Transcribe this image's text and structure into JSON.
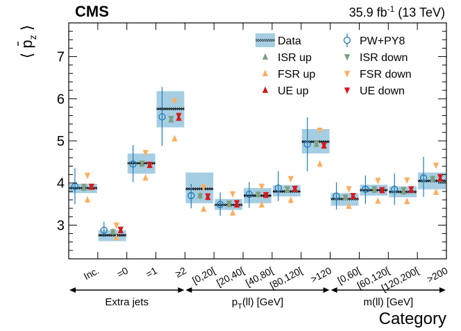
{
  "header": {
    "experiment": "CMS",
    "lumi_text": "35.9 fb",
    "lumi_exp": "-1",
    "energy_text": " (13 TeV)"
  },
  "colors": {
    "data_band": "#a6cee3",
    "pwpy8": "#1f78b4",
    "isr": "#7f9f7f",
    "fsr": "#fdae61",
    "ue": "#d7191c"
  },
  "chart_data": {
    "type": "scatter",
    "title": "",
    "ylabel": "⟨ p̄z ⟩",
    "ylabel_main": "p",
    "ylabel_sub": "z",
    "xlabel": "Category",
    "ylim": [
      2.2,
      7.8
    ],
    "yticks": [
      3,
      4,
      5,
      6,
      7
    ],
    "categories": [
      "Inc.",
      "=0",
      "=1",
      "≥2",
      "[0,20[",
      "[20,40[",
      "[40,80[",
      "[80,120[",
      ">120",
      "[0,60[",
      "[60,120[",
      "[120,200[",
      ">200"
    ],
    "groups": [
      {
        "label": "Extra jets",
        "range": [
          1,
          3
        ]
      },
      {
        "label_main": "p",
        "label_sub": "T",
        "label_rest": "(ll) [GeV]",
        "range": [
          4,
          8
        ]
      },
      {
        "label": "m(ll) [GeV]",
        "range": [
          9,
          12
        ]
      }
    ],
    "series": [
      {
        "name": "Data",
        "type": "band",
        "values": [
          3.88,
          2.76,
          4.47,
          5.76,
          3.86,
          3.48,
          3.7,
          3.8,
          4.98,
          3.62,
          3.83,
          3.79,
          4.05
        ],
        "band_low": [
          3.76,
          2.62,
          4.22,
          5.32,
          3.52,
          3.36,
          3.52,
          3.68,
          4.7,
          3.46,
          3.7,
          3.66,
          3.85
        ],
        "band_high": [
          3.98,
          2.88,
          4.7,
          6.18,
          4.25,
          3.62,
          3.88,
          3.95,
          5.28,
          3.76,
          3.96,
          3.92,
          4.25
        ]
      },
      {
        "name": "PW+PY8",
        "type": "errorbar",
        "values": [
          3.92,
          2.88,
          4.45,
          5.57,
          3.7,
          3.49,
          3.73,
          3.88,
          4.92,
          3.69,
          3.85,
          3.85,
          4.12
        ],
        "err_low": [
          3.5,
          2.72,
          4.02,
          4.88,
          3.4,
          3.22,
          3.41,
          3.57,
          4.28,
          3.37,
          3.5,
          3.48,
          3.67
        ],
        "err_high": [
          4.35,
          3.08,
          4.9,
          6.28,
          3.98,
          3.78,
          4.02,
          4.28,
          5.56,
          4.02,
          4.18,
          4.23,
          4.62
        ]
      },
      {
        "name": "ISR up",
        "type": "marker",
        "marker": "tri-up",
        "values": [
          3.88,
          2.84,
          4.45,
          5.5,
          3.7,
          3.49,
          3.73,
          3.83,
          4.92,
          3.66,
          3.83,
          3.79,
          4.1
        ]
      },
      {
        "name": "ISR down",
        "type": "marker",
        "marker": "tri-down",
        "values": [
          3.92,
          2.84,
          4.47,
          5.53,
          3.69,
          3.52,
          3.73,
          3.86,
          4.95,
          3.66,
          3.86,
          3.84,
          4.1
        ]
      },
      {
        "name": "FSR up",
        "type": "marker",
        "marker": "tri-up",
        "values": [
          3.6,
          2.7,
          4.12,
          5.05,
          3.38,
          3.29,
          3.48,
          3.59,
          4.45,
          3.45,
          3.57,
          3.56,
          3.78
        ]
      },
      {
        "name": "FSR down",
        "type": "marker",
        "marker": "tri-down",
        "values": [
          4.18,
          3.0,
          4.72,
          5.95,
          3.9,
          3.74,
          3.92,
          4.1,
          5.25,
          3.86,
          4.06,
          4.07,
          4.42
        ]
      },
      {
        "name": "UE up",
        "type": "marker",
        "marker": "tri-up",
        "values": [
          3.9,
          2.87,
          4.42,
          5.54,
          3.66,
          3.48,
          3.71,
          3.85,
          4.88,
          3.68,
          3.82,
          3.83,
          4.1
        ]
      },
      {
        "name": "UE down",
        "type": "marker",
        "marker": "tri-down",
        "values": [
          3.92,
          2.9,
          4.44,
          5.6,
          3.69,
          3.53,
          3.72,
          3.87,
          4.9,
          3.7,
          3.84,
          3.86,
          4.15
        ]
      }
    ],
    "legend": [
      "Data",
      "PW+PY8",
      "ISR up",
      "ISR down",
      "FSR up",
      "FSR down",
      "UE up",
      "UE down"
    ],
    "legend_position": "top-right",
    "grid": false
  }
}
